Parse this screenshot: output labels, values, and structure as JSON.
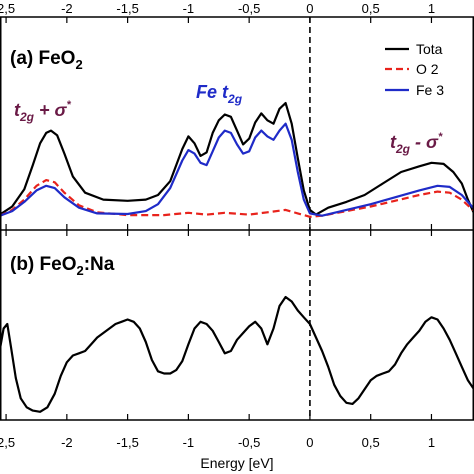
{
  "chart_data": [
    {
      "type": "line",
      "panel_label": "(a) FeO",
      "panel_label_sub": "2",
      "xlabel": "Energy [eV]",
      "xlim": [
        -2.55,
        1.35
      ],
      "x_ticks": [
        -2.5,
        -2,
        -1.5,
        -1,
        -0.5,
        0,
        0.5,
        1
      ],
      "x_tick_labels_top": [
        "2,5",
        "-2",
        "-1,5",
        "-1",
        "-0,5",
        "0",
        "0,5",
        "1"
      ],
      "fermi_level_line": 0,
      "legend_position": "top-right",
      "legend": [
        {
          "text": "Tota",
          "color": "#000000",
          "style": "solid"
        },
        {
          "text": "O 2",
          "color": "#e8231c",
          "style": "dashed"
        },
        {
          "text": "Fe 3",
          "color": "#1f2bc8",
          "style": "solid"
        }
      ],
      "annotations": [
        {
          "text": "t",
          "sub": "2g",
          "suffix": " + σ",
          "sup": "*",
          "color": "#6a1a46"
        },
        {
          "text": "Fe t",
          "sub": "2g",
          "color": "#1f2bc8"
        },
        {
          "text": "t",
          "sub": "2g",
          "suffix": " - σ",
          "sup": "*",
          "color": "#6a1a46"
        }
      ],
      "series": [
        {
          "color": "#000000",
          "style": "solid",
          "x": [
            -2.55,
            -2.45,
            -2.35,
            -2.28,
            -2.22,
            -2.17,
            -2.13,
            -2.08,
            -2.02,
            -1.95,
            -1.85,
            -1.7,
            -1.5,
            -1.35,
            -1.25,
            -1.15,
            -1.05,
            -1.0,
            -0.95,
            -0.9,
            -0.85,
            -0.8,
            -0.75,
            -0.7,
            -0.65,
            -0.6,
            -0.55,
            -0.5,
            -0.45,
            -0.4,
            -0.35,
            -0.3,
            -0.25,
            -0.2,
            -0.15,
            -0.1,
            -0.05,
            0.0,
            0.05,
            0.15,
            0.3,
            0.45,
            0.6,
            0.75,
            0.9,
            1.0,
            1.1,
            1.18,
            1.25,
            1.3,
            1.35
          ],
          "y": [
            0.3,
            1.0,
            2.5,
            4.6,
            6.5,
            7.4,
            7.6,
            7.2,
            5.6,
            3.6,
            2.2,
            1.6,
            1.5,
            1.6,
            2.0,
            3.2,
            6.0,
            7.1,
            6.5,
            5.4,
            5.7,
            7.4,
            8.5,
            9.0,
            8.8,
            7.6,
            6.4,
            6.9,
            8.3,
            9.1,
            8.5,
            8.2,
            9.5,
            10.0,
            8.2,
            5.2,
            2.4,
            0.7,
            0.3,
            0.9,
            1.4,
            2.0,
            3.0,
            4.0,
            4.5,
            4.8,
            4.7,
            4.0,
            3.0,
            1.6,
            0.4
          ]
        },
        {
          "color": "#e8231c",
          "style": "dashed",
          "x": [
            -2.55,
            -2.45,
            -2.35,
            -2.25,
            -2.17,
            -2.1,
            -2.02,
            -1.9,
            -1.75,
            -1.5,
            -1.2,
            -1.0,
            -0.85,
            -0.7,
            -0.5,
            -0.35,
            -0.2,
            -0.1,
            0.0,
            0.1,
            0.3,
            0.5,
            0.7,
            0.9,
            1.05,
            1.15,
            1.25,
            1.35
          ],
          "y": [
            0.2,
            0.7,
            1.6,
            2.8,
            3.3,
            3.1,
            2.2,
            1.1,
            0.5,
            0.25,
            0.25,
            0.45,
            0.3,
            0.45,
            0.3,
            0.5,
            0.7,
            0.4,
            0.1,
            0.2,
            0.6,
            1.0,
            1.5,
            2.0,
            2.3,
            2.2,
            1.6,
            0.6
          ]
        },
        {
          "color": "#1f2bc8",
          "style": "solid",
          "x": [
            -2.55,
            -2.45,
            -2.35,
            -2.25,
            -2.17,
            -2.1,
            -2.02,
            -1.9,
            -1.75,
            -1.5,
            -1.35,
            -1.25,
            -1.15,
            -1.05,
            -1.0,
            -0.95,
            -0.9,
            -0.85,
            -0.8,
            -0.75,
            -0.7,
            -0.65,
            -0.6,
            -0.55,
            -0.5,
            -0.45,
            -0.4,
            -0.35,
            -0.3,
            -0.25,
            -0.2,
            -0.15,
            -0.1,
            -0.05,
            0.0,
            0.1,
            0.3,
            0.5,
            0.7,
            0.9,
            1.05,
            1.15,
            1.25,
            1.35
          ],
          "y": [
            0.2,
            0.6,
            1.4,
            2.4,
            2.8,
            2.6,
            1.8,
            0.9,
            0.4,
            0.35,
            0.6,
            1.2,
            2.6,
            5.0,
            5.9,
            5.6,
            4.8,
            4.6,
            5.8,
            7.0,
            7.6,
            7.4,
            6.4,
            5.6,
            5.8,
            7.0,
            7.6,
            7.1,
            6.8,
            7.6,
            8.2,
            6.8,
            4.0,
            1.6,
            0.4,
            0.2,
            0.7,
            1.2,
            1.8,
            2.4,
            2.8,
            2.7,
            2.0,
            0.8
          ]
        }
      ]
    },
    {
      "type": "line",
      "panel_label": "(b) FeO",
      "panel_label_sub": "2",
      "panel_label_suffix": ":Na",
      "xlabel": "Energy [eV]",
      "xlim": [
        -2.55,
        1.35
      ],
      "x_ticks": [
        -2.5,
        -2,
        -1.5,
        -1,
        -0.5,
        0,
        0.5,
        1
      ],
      "x_tick_labels_bottom": [
        "2,5",
        "-2",
        "-1,5",
        "-1",
        "-0,5",
        "0",
        "0,5",
        "1"
      ],
      "fermi_level_line": 0,
      "series": [
        {
          "color": "#000000",
          "style": "solid",
          "x": [
            -2.55,
            -2.52,
            -2.49,
            -2.46,
            -2.42,
            -2.38,
            -2.33,
            -2.28,
            -2.22,
            -2.16,
            -2.1,
            -2.05,
            -2.0,
            -1.95,
            -1.9,
            -1.85,
            -1.8,
            -1.75,
            -1.7,
            -1.65,
            -1.6,
            -1.55,
            -1.5,
            -1.45,
            -1.4,
            -1.35,
            -1.3,
            -1.25,
            -1.2,
            -1.15,
            -1.1,
            -1.05,
            -1.0,
            -0.95,
            -0.9,
            -0.85,
            -0.8,
            -0.75,
            -0.7,
            -0.65,
            -0.6,
            -0.55,
            -0.5,
            -0.45,
            -0.4,
            -0.35,
            -0.3,
            -0.25,
            -0.2,
            -0.15,
            -0.1,
            -0.05,
            0.0,
            0.05,
            0.1,
            0.15,
            0.2,
            0.25,
            0.3,
            0.35,
            0.4,
            0.45,
            0.5,
            0.55,
            0.6,
            0.65,
            0.7,
            0.75,
            0.8,
            0.85,
            0.9,
            0.95,
            1.0,
            1.05,
            1.1,
            1.15,
            1.2,
            1.25,
            1.3,
            1.35
          ],
          "y": [
            5.8,
            7.6,
            8.0,
            6.0,
            3.2,
            1.4,
            0.6,
            0.3,
            0.2,
            0.6,
            1.8,
            3.4,
            4.6,
            5.2,
            5.4,
            5.6,
            6.2,
            6.8,
            7.2,
            7.6,
            8.0,
            8.2,
            8.4,
            8.2,
            7.6,
            6.4,
            4.8,
            3.8,
            3.6,
            3.6,
            3.9,
            4.7,
            6.2,
            7.6,
            8.2,
            8.0,
            7.4,
            6.4,
            5.4,
            5.6,
            6.6,
            7.2,
            7.8,
            8.2,
            7.6,
            6.2,
            7.6,
            9.6,
            10.4,
            10.0,
            9.2,
            8.6,
            8.0,
            6.8,
            5.6,
            4.2,
            2.6,
            1.6,
            1.0,
            0.9,
            1.4,
            2.2,
            3.0,
            3.4,
            3.6,
            3.8,
            4.4,
            5.4,
            6.2,
            6.8,
            7.4,
            8.2,
            8.6,
            8.4,
            7.6,
            6.6,
            5.4,
            4.2,
            3.0,
            2.2
          ]
        }
      ]
    }
  ]
}
